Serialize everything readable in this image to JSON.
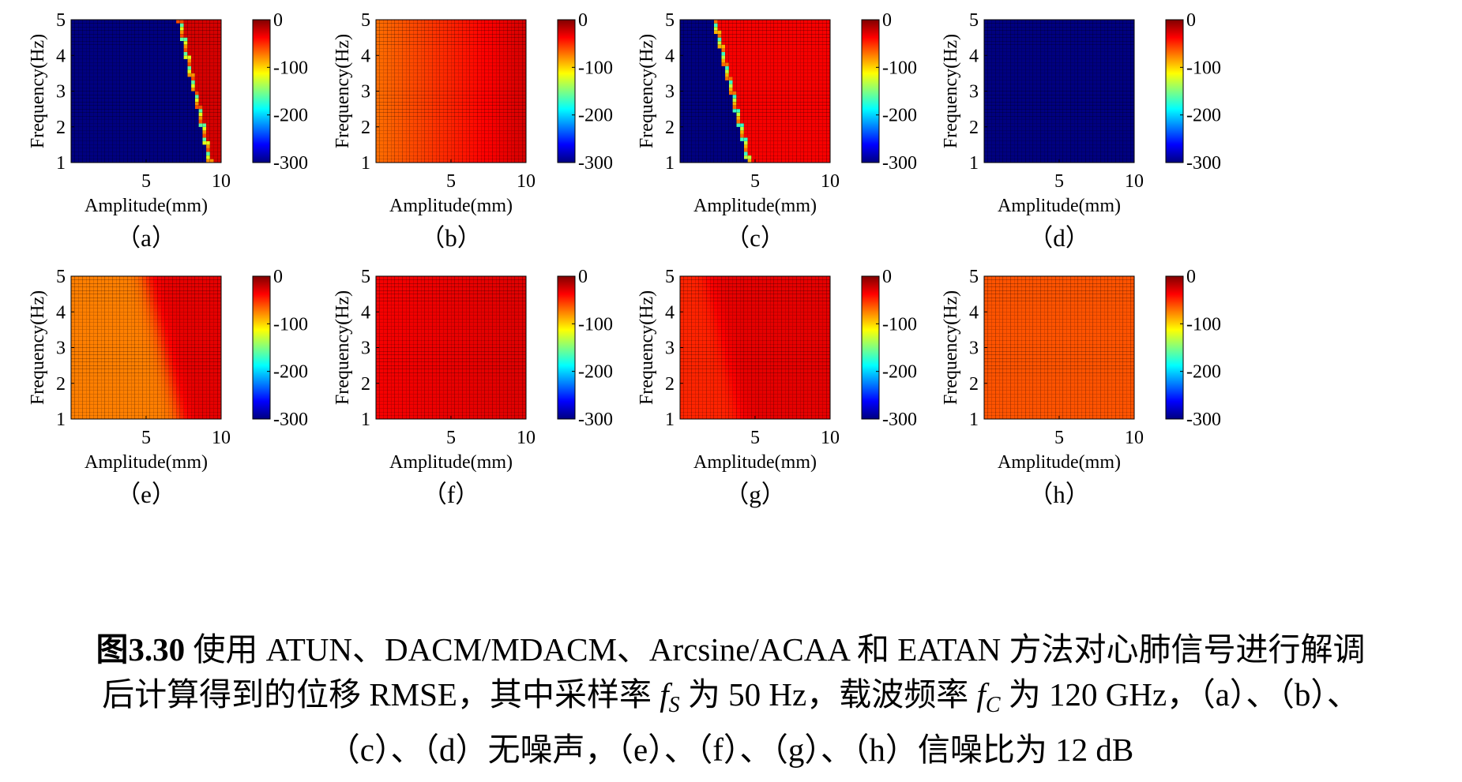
{
  "figure": {
    "caption": {
      "label": "图3.30",
      "l1": "使用 ATUN、DACM/MDACM、Arcsine/ACAA 和 EATAN 方法对心肺信号进行解调",
      "l2a": "后计算得到的位移 RMSE，其中采样率 ",
      "fs_var": "f",
      "fs_sub": "S",
      "l2b": " 为 50 Hz，载波频率 ",
      "fc_var": "f",
      "fc_sub": "C",
      "l2c": " 为 120 GHz，（a）、（b）、",
      "l3": "（c）、（d）无噪声，（e）、（f）、（g）、（h）信噪比为 12 dB"
    }
  },
  "colormap": "jet",
  "chart_data": [
    {
      "type": "heatmap",
      "panel": "（a）",
      "xlabel": "Amplitude(mm)",
      "ylabel": "Frequency(Hz)",
      "xticks": [
        5,
        10
      ],
      "yticks": [
        1,
        2,
        3,
        4,
        5
      ],
      "xlim": [
        0,
        10
      ],
      "ylim": [
        1,
        5
      ],
      "colorbar_ticks": [
        0,
        -100,
        -200,
        -300
      ],
      "clim": [
        -300,
        0
      ],
      "grid_cols": 40,
      "grid_rows": 40,
      "surface": {
        "kind": "threshold",
        "low": -300,
        "high": -25,
        "boundary_at_f5": 7.2,
        "boundary_at_f1": 9.3,
        "edge_values": [
          -80,
          -120,
          -160,
          -60
        ]
      }
    },
    {
      "type": "heatmap",
      "panel": "（b）",
      "xlabel": "Amplitude(mm)",
      "ylabel": "Frequency(Hz)",
      "xticks": [
        5,
        10
      ],
      "yticks": [
        1,
        2,
        3,
        4,
        5
      ],
      "xlim": [
        0,
        10
      ],
      "ylim": [
        1,
        5
      ],
      "colorbar_ticks": [
        0,
        -100,
        -200,
        -300
      ],
      "clim": [
        -300,
        0
      ],
      "grid_cols": 40,
      "grid_rows": 40,
      "surface": {
        "kind": "gradient",
        "at_amp0": -70,
        "at_amp10": -25
      }
    },
    {
      "type": "heatmap",
      "panel": "（c）",
      "xlabel": "Amplitude(mm)",
      "ylabel": "Frequency(Hz)",
      "xticks": [
        5,
        10
      ],
      "yticks": [
        1,
        2,
        3,
        4,
        5
      ],
      "xlim": [
        0,
        10
      ],
      "ylim": [
        1,
        5
      ],
      "colorbar_ticks": [
        0,
        -100,
        -200,
        -300
      ],
      "clim": [
        -300,
        0
      ],
      "grid_cols": 40,
      "grid_rows": 40,
      "surface": {
        "kind": "threshold",
        "low": -300,
        "high": -35,
        "boundary_at_f5": 2.3,
        "boundary_at_f1": 4.6,
        "edge_values": [
          -90,
          -130,
          -170,
          -70
        ]
      }
    },
    {
      "type": "heatmap",
      "panel": "（d）",
      "xlabel": "Amplitude(mm)",
      "ylabel": "Frequency(Hz)",
      "xticks": [
        5,
        10
      ],
      "yticks": [
        1,
        2,
        3,
        4,
        5
      ],
      "xlim": [
        0,
        10
      ],
      "ylim": [
        1,
        5
      ],
      "colorbar_ticks": [
        0,
        -100,
        -200,
        -300
      ],
      "clim": [
        -300,
        0
      ],
      "grid_cols": 40,
      "grid_rows": 40,
      "surface": {
        "kind": "constant",
        "value": -300
      }
    },
    {
      "type": "heatmap",
      "panel": "（e）",
      "xlabel": "Amplitude(mm)",
      "ylabel": "Frequency(Hz)",
      "xticks": [
        5,
        10
      ],
      "yticks": [
        1,
        2,
        3,
        4,
        5
      ],
      "xlim": [
        0,
        10
      ],
      "ylim": [
        1,
        5
      ],
      "colorbar_ticks": [
        0,
        -100,
        -200,
        -300
      ],
      "clim": [
        -300,
        0
      ],
      "grid_cols": 40,
      "grid_rows": 40,
      "surface": {
        "kind": "soft_threshold",
        "low": -75,
        "high": -30,
        "boundary_at_f5": 5.0,
        "boundary_at_f1": 7.3
      }
    },
    {
      "type": "heatmap",
      "panel": "（f）",
      "xlabel": "Amplitude(mm)",
      "ylabel": "Frequency(Hz)",
      "xticks": [
        5,
        10
      ],
      "yticks": [
        1,
        2,
        3,
        4,
        5
      ],
      "xlim": [
        0,
        10
      ],
      "ylim": [
        1,
        5
      ],
      "colorbar_ticks": [
        0,
        -100,
        -200,
        -300
      ],
      "clim": [
        -300,
        0
      ],
      "grid_cols": 40,
      "grid_rows": 40,
      "surface": {
        "kind": "gradient",
        "at_amp0": -35,
        "at_amp10": -28
      }
    },
    {
      "type": "heatmap",
      "panel": "（g）",
      "xlabel": "Amplitude(mm)",
      "ylabel": "Frequency(Hz)",
      "xticks": [
        5,
        10
      ],
      "yticks": [
        1,
        2,
        3,
        4,
        5
      ],
      "xlim": [
        0,
        10
      ],
      "ylim": [
        1,
        5
      ],
      "colorbar_ticks": [
        0,
        -100,
        -200,
        -300
      ],
      "clim": [
        -300,
        0
      ],
      "grid_cols": 40,
      "grid_rows": 40,
      "surface": {
        "kind": "soft_threshold",
        "low": -48,
        "high": -30,
        "boundary_at_f5": 1.8,
        "boundary_at_f1": 4.0
      }
    },
    {
      "type": "heatmap",
      "panel": "（h）",
      "xlabel": "Amplitude(mm)",
      "ylabel": "Frequency(Hz)",
      "xticks": [
        5,
        10
      ],
      "yticks": [
        1,
        2,
        3,
        4,
        5
      ],
      "xlim": [
        0,
        10
      ],
      "ylim": [
        1,
        5
      ],
      "colorbar_ticks": [
        0,
        -100,
        -200,
        -300
      ],
      "clim": [
        -300,
        0
      ],
      "grid_cols": 40,
      "grid_rows": 40,
      "surface": {
        "kind": "constant",
        "value": -62
      }
    }
  ]
}
